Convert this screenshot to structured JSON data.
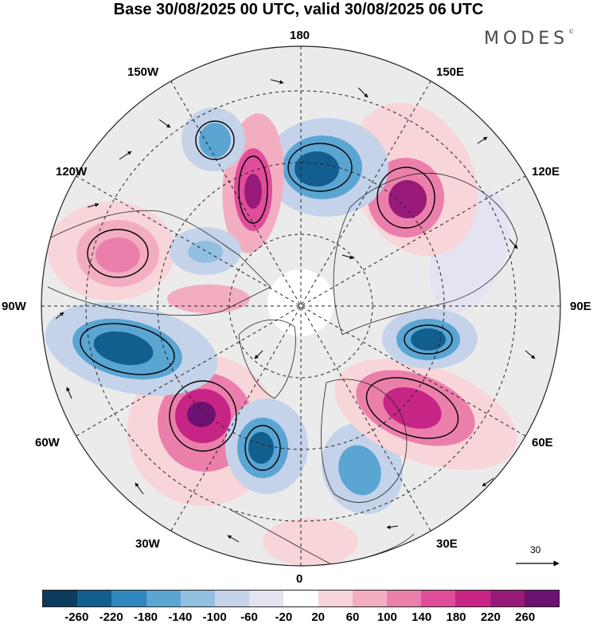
{
  "title": "Base 30/08/2025 00 UTC, valid 30/08/2025 06 UTC",
  "brand": "MODES",
  "brand_mark": "©",
  "longitudes": {
    "n180": "180",
    "w150": "150W",
    "e150": "150E",
    "w120": "120W",
    "e120": "120E",
    "w90": "90W",
    "e90": "90E",
    "w60": "60W",
    "e60": "60E",
    "w30": "30W",
    "e30": "30E",
    "zero": "0"
  },
  "reference_vector": "30",
  "colorbar": {
    "colors": [
      "#0c3b5e",
      "#125e8e",
      "#2f87bd",
      "#5aa5d2",
      "#92bfe0",
      "#c4d3ea",
      "#e3e3f1",
      "#ffffff",
      "#f8d5d8",
      "#f3adc1",
      "#eb7fab",
      "#e04d9a",
      "#c62585",
      "#981a78",
      "#6d1272"
    ],
    "ticks": [
      "-260",
      "-220",
      "-180",
      "-140",
      "-100",
      "-60",
      "-20",
      "20",
      "60",
      "100",
      "140",
      "180",
      "220",
      "260"
    ]
  },
  "anomalies": [
    {
      "name": "pos-60w",
      "value": 270
    },
    {
      "name": "neg-100w",
      "value": -230
    },
    {
      "name": "neg-35w",
      "value": -200
    },
    {
      "name": "neg-10e",
      "value": -170
    },
    {
      "name": "pos-50e",
      "value": 230
    },
    {
      "name": "neg-80e",
      "value": -200
    },
    {
      "name": "pos-130e",
      "value": 220
    },
    {
      "name": "neg-170e",
      "value": -190
    },
    {
      "name": "pos-160w",
      "value": 230
    },
    {
      "name": "neg-150w",
      "value": -150
    },
    {
      "name": "pos-110w",
      "value": 140
    },
    {
      "name": "neg-125w-inner",
      "value": -110
    },
    {
      "name": "pos-90w-inner",
      "value": 100
    },
    {
      "name": "pos-25w",
      "value": 60
    },
    {
      "name": "neg-100e",
      "value": -60
    }
  ]
}
